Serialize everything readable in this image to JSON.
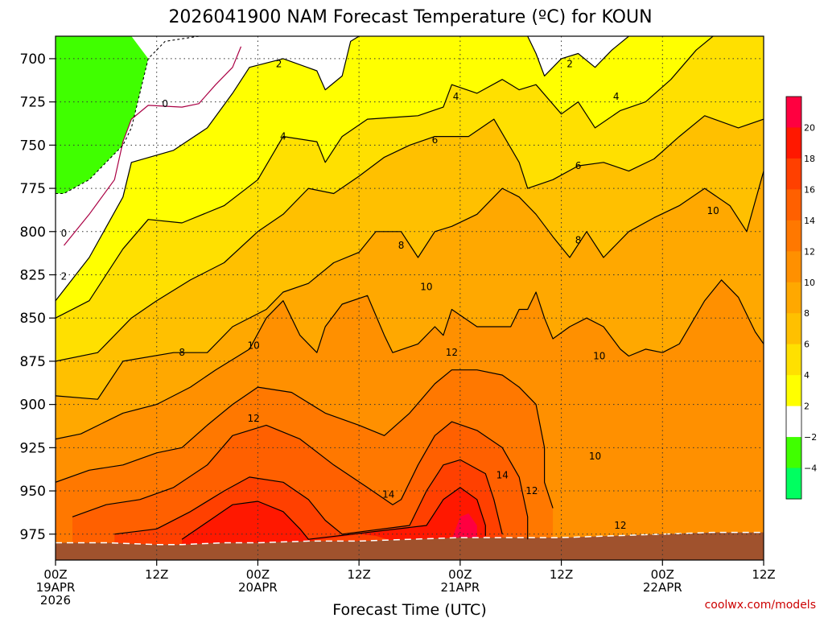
{
  "chart_data": {
    "type": "heatmap",
    "title": "2026041900 NAM Forecast Temperature (ºC) for KOUN",
    "xlabel": "Forecast Time (UTC)",
    "ylabel": "",
    "credit": "coolwx.com/models",
    "x_range_hours": [
      0,
      84
    ],
    "y_range_hpa": [
      687,
      990
    ],
    "y_ticks": [
      "700",
      "725",
      "750",
      "775",
      "800",
      "825",
      "850",
      "875",
      "900",
      "925",
      "950",
      "975"
    ],
    "x_ticks": [
      {
        "hour": 0,
        "line1": "00Z",
        "line2": "19APR",
        "line3": "2026"
      },
      {
        "hour": 12,
        "line1": "12Z",
        "line2": "",
        "line3": ""
      },
      {
        "hour": 24,
        "line1": "00Z",
        "line2": "20APR",
        "line3": ""
      },
      {
        "hour": 36,
        "line1": "12Z",
        "line2": "",
        "line3": ""
      },
      {
        "hour": 48,
        "line1": "00Z",
        "line2": "21APR",
        "line3": ""
      },
      {
        "hour": 60,
        "line1": "12Z",
        "line2": "",
        "line3": ""
      },
      {
        "hour": 72,
        "line1": "00Z",
        "line2": "22APR",
        "line3": ""
      },
      {
        "hour": 84,
        "line1": "12Z",
        "line2": "",
        "line3": ""
      }
    ],
    "colorbar": {
      "levels": [
        "20",
        "18",
        "16",
        "14",
        "12",
        "10",
        "8",
        "6",
        "4",
        "2",
        "−2",
        "−4"
      ],
      "colors": [
        "#ff0040",
        "#ff1800",
        "#ff4000",
        "#ff6000",
        "#ff7800",
        "#ff9000",
        "#ffa800",
        "#ffc000",
        "#ffe000",
        "#ffff00",
        "#ffffff",
        "#40ff00",
        "#00ff60"
      ]
    },
    "fill_colors": {
      "m4": "#40ff00",
      "m2_0": "#ffffff",
      "t0_2": "#ffffff",
      "t2_4": "#ffff00",
      "t4_6": "#ffe000",
      "t6_8": "#ffc000",
      "t8_10": "#ffa800",
      "t10_12": "#ff9000",
      "t12_14": "#ff7800",
      "t14_16": "#ff6000",
      "t16_18": "#ff4000",
      "t18_20": "#ff1800",
      "t20": "#ff0040",
      "ground": "#a0522d"
    },
    "surface_pressure_hpa": [
      [
        0,
        980
      ],
      [
        6,
        980
      ],
      [
        12,
        981
      ],
      [
        15,
        981
      ],
      [
        20,
        980
      ],
      [
        24,
        980
      ],
      [
        30,
        979
      ],
      [
        36,
        979
      ],
      [
        42,
        978
      ],
      [
        48,
        977
      ],
      [
        54,
        977
      ],
      [
        60,
        977
      ],
      [
        66,
        976
      ],
      [
        72,
        975
      ],
      [
        78,
        974
      ],
      [
        84,
        974
      ]
    ],
    "contours": [
      {
        "level": 0,
        "label": "0",
        "color": "#aa0044",
        "points": [
          [
            1,
            808
          ],
          [
            4,
            790
          ],
          [
            7,
            770
          ],
          [
            8,
            748
          ],
          [
            9,
            735
          ],
          [
            11,
            727
          ],
          [
            15,
            728
          ],
          [
            17,
            726
          ],
          [
            19,
            715
          ],
          [
            21,
            705
          ],
          [
            22,
            693
          ]
        ]
      },
      {
        "level": 2,
        "label": "2",
        "color": "#000000",
        "points": [
          [
            0,
            840
          ],
          [
            4,
            815
          ],
          [
            8,
            780
          ],
          [
            9,
            760
          ],
          [
            14,
            753
          ],
          [
            18,
            740
          ],
          [
            21,
            720
          ],
          [
            23,
            705
          ],
          [
            27,
            700
          ],
          [
            31,
            707
          ],
          [
            32,
            718
          ],
          [
            34,
            710
          ],
          [
            35,
            690
          ],
          [
            36,
            687
          ]
        ]
      },
      {
        "level": 2,
        "label": "2",
        "color": "#000000",
        "points": [
          [
            56,
            687
          ],
          [
            57,
            697
          ],
          [
            58,
            710
          ],
          [
            60,
            700
          ],
          [
            62,
            697
          ],
          [
            64,
            705
          ],
          [
            66,
            695
          ],
          [
            68,
            687
          ]
        ]
      },
      {
        "level": 4,
        "label": "4",
        "color": "#000000",
        "points": [
          [
            0,
            850
          ],
          [
            4,
            840
          ],
          [
            8,
            810
          ],
          [
            11,
            793
          ],
          [
            15,
            795
          ],
          [
            20,
            785
          ],
          [
            24,
            770
          ],
          [
            27,
            745
          ],
          [
            31,
            748
          ],
          [
            32,
            760
          ],
          [
            34,
            745
          ],
          [
            37,
            735
          ],
          [
            43,
            733
          ],
          [
            46,
            728
          ],
          [
            47,
            715
          ],
          [
            50,
            720
          ],
          [
            53,
            712
          ],
          [
            55,
            718
          ],
          [
            57,
            715
          ],
          [
            60,
            732
          ],
          [
            62,
            725
          ],
          [
            64,
            740
          ],
          [
            67,
            730
          ],
          [
            70,
            725
          ],
          [
            73,
            712
          ],
          [
            76,
            695
          ],
          [
            78,
            687
          ]
        ]
      },
      {
        "level": 6,
        "label": "6",
        "color": "#000000",
        "points": [
          [
            0,
            875
          ],
          [
            5,
            870
          ],
          [
            9,
            850
          ],
          [
            12,
            840
          ],
          [
            16,
            828
          ],
          [
            20,
            818
          ],
          [
            24,
            800
          ],
          [
            27,
            790
          ],
          [
            30,
            775
          ],
          [
            33,
            778
          ],
          [
            36,
            768
          ],
          [
            39,
            757
          ],
          [
            42,
            750
          ],
          [
            45,
            745
          ],
          [
            49,
            745
          ],
          [
            52,
            735
          ],
          [
            55,
            760
          ],
          [
            56,
            775
          ],
          [
            59,
            770
          ],
          [
            62,
            762
          ],
          [
            65,
            760
          ],
          [
            68,
            765
          ],
          [
            71,
            758
          ],
          [
            74,
            745
          ],
          [
            77,
            733
          ],
          [
            81,
            740
          ],
          [
            84,
            735
          ]
        ]
      },
      {
        "level": 8,
        "label": "8",
        "color": "#000000",
        "points": [
          [
            0,
            895
          ],
          [
            5,
            897
          ],
          [
            8,
            875
          ],
          [
            14,
            870
          ],
          [
            18,
            870
          ],
          [
            21,
            855
          ],
          [
            25,
            845
          ],
          [
            27,
            835
          ],
          [
            30,
            830
          ],
          [
            33,
            818
          ],
          [
            36,
            812
          ],
          [
            38,
            800
          ],
          [
            41,
            800
          ],
          [
            43,
            815
          ],
          [
            45,
            800
          ],
          [
            47,
            797
          ],
          [
            50,
            790
          ],
          [
            53,
            775
          ],
          [
            55,
            780
          ],
          [
            57,
            790
          ],
          [
            59,
            803
          ],
          [
            61,
            815
          ],
          [
            63,
            800
          ],
          [
            65,
            815
          ],
          [
            68,
            800
          ],
          [
            71,
            792
          ],
          [
            74,
            785
          ],
          [
            77,
            775
          ],
          [
            80,
            785
          ],
          [
            82,
            800
          ],
          [
            84,
            765
          ]
        ]
      },
      {
        "level": 10,
        "label": "10",
        "color": "#000000",
        "points": [
          [
            0,
            920
          ],
          [
            3,
            917
          ],
          [
            8,
            905
          ],
          [
            12,
            900
          ],
          [
            16,
            890
          ],
          [
            19,
            880
          ],
          [
            23,
            868
          ],
          [
            25,
            850
          ],
          [
            27,
            840
          ],
          [
            29,
            860
          ],
          [
            31,
            870
          ],
          [
            32,
            855
          ],
          [
            34,
            842
          ],
          [
            37,
            837
          ],
          [
            39,
            860
          ],
          [
            40,
            870
          ],
          [
            43,
            865
          ],
          [
            45,
            855
          ],
          [
            46,
            860
          ],
          [
            47,
            845
          ],
          [
            50,
            855
          ],
          [
            53,
            855
          ],
          [
            54,
            855
          ],
          [
            55,
            845
          ],
          [
            56,
            845
          ],
          [
            57,
            835
          ],
          [
            58,
            850
          ],
          [
            59,
            862
          ],
          [
            61,
            855
          ],
          [
            63,
            850
          ],
          [
            65,
            855
          ],
          [
            67,
            868
          ],
          [
            68,
            872
          ],
          [
            70,
            868
          ],
          [
            72,
            870
          ],
          [
            74,
            865
          ],
          [
            77,
            840
          ],
          [
            79,
            828
          ],
          [
            81,
            838
          ],
          [
            83,
            858
          ],
          [
            84,
            865
          ]
        ]
      },
      {
        "level": 12,
        "label": "12",
        "color": "#000000",
        "points": [
          [
            0,
            945
          ],
          [
            4,
            938
          ],
          [
            8,
            935
          ],
          [
            12,
            928
          ],
          [
            15,
            925
          ],
          [
            18,
            912
          ],
          [
            21,
            900
          ],
          [
            24,
            890
          ],
          [
            28,
            893
          ],
          [
            32,
            905
          ],
          [
            36,
            912
          ],
          [
            39,
            918
          ],
          [
            42,
            905
          ],
          [
            45,
            888
          ],
          [
            47,
            880
          ],
          [
            50,
            880
          ],
          [
            53,
            883
          ],
          [
            55,
            890
          ],
          [
            57,
            900
          ],
          [
            58,
            925
          ],
          [
            58,
            945
          ],
          [
            59,
            960
          ]
        ]
      },
      {
        "level": 14,
        "label": "14",
        "color": "#000000",
        "points": [
          [
            2,
            965
          ],
          [
            6,
            958
          ],
          [
            10,
            955
          ],
          [
            14,
            948
          ],
          [
            18,
            935
          ],
          [
            21,
            918
          ],
          [
            25,
            912
          ],
          [
            29,
            920
          ],
          [
            33,
            935
          ],
          [
            37,
            948
          ],
          [
            40,
            958
          ],
          [
            41,
            955
          ],
          [
            43,
            935
          ],
          [
            45,
            918
          ],
          [
            47,
            910
          ],
          [
            50,
            915
          ],
          [
            53,
            925
          ],
          [
            55,
            942
          ],
          [
            56,
            965
          ],
          [
            56,
            978
          ]
        ]
      },
      {
        "level": 16,
        "label": "",
        "color": "#000000",
        "points": [
          [
            7,
            975
          ],
          [
            12,
            972
          ],
          [
            16,
            962
          ],
          [
            20,
            950
          ],
          [
            23,
            942
          ],
          [
            27,
            945
          ],
          [
            30,
            955
          ],
          [
            32,
            967
          ],
          [
            34,
            975
          ],
          [
            42,
            970
          ],
          [
            44,
            950
          ],
          [
            46,
            935
          ],
          [
            48,
            932
          ],
          [
            51,
            940
          ],
          [
            52,
            955
          ],
          [
            53,
            975
          ]
        ]
      },
      {
        "level": 18,
        "label": "",
        "color": "#000000",
        "points": [
          [
            15,
            978
          ],
          [
            18,
            968
          ],
          [
            21,
            958
          ],
          [
            24,
            956
          ],
          [
            27,
            962
          ],
          [
            29,
            972
          ],
          [
            30,
            978
          ],
          [
            44,
            970
          ],
          [
            46,
            955
          ],
          [
            48,
            948
          ],
          [
            50,
            955
          ],
          [
            51,
            970
          ],
          [
            51,
            976
          ]
        ]
      }
    ],
    "contour_labels": [
      {
        "text": "0",
        "hour": 13,
        "hpa": 726
      },
      {
        "text": "0",
        "hour": 1,
        "hpa": 801
      },
      {
        "text": "2",
        "hour": 26.5,
        "hpa": 703
      },
      {
        "text": "2",
        "hour": 61,
        "hpa": 703
      },
      {
        "text": "2",
        "hour": 1,
        "hpa": 826
      },
      {
        "text": "4",
        "hour": 27,
        "hpa": 745
      },
      {
        "text": "4",
        "hour": 47.5,
        "hpa": 722
      },
      {
        "text": "4",
        "hour": 66.5,
        "hpa": 722
      },
      {
        "text": "6",
        "hour": 45,
        "hpa": 747
      },
      {
        "text": "6",
        "hour": 62,
        "hpa": 762
      },
      {
        "text": "8",
        "hour": 15,
        "hpa": 870
      },
      {
        "text": "8",
        "hour": 41,
        "hpa": 808
      },
      {
        "text": "8",
        "hour": 62,
        "hpa": 805
      },
      {
        "text": "10",
        "hour": 23.5,
        "hpa": 866
      },
      {
        "text": "10",
        "hour": 44,
        "hpa": 832
      },
      {
        "text": "10",
        "hour": 64.5,
        "hpa": 872
      },
      {
        "text": "10",
        "hour": 78,
        "hpa": 788
      },
      {
        "text": "10",
        "hour": 64,
        "hpa": 930
      },
      {
        "text": "12",
        "hour": 23.5,
        "hpa": 908
      },
      {
        "text": "12",
        "hour": 47,
        "hpa": 870
      },
      {
        "text": "12",
        "hour": 56.5,
        "hpa": 950
      },
      {
        "text": "12",
        "hour": 67,
        "hpa": 970
      },
      {
        "text": "14",
        "hour": 39.5,
        "hpa": 952
      },
      {
        "text": "14",
        "hour": 53,
        "hpa": 941
      }
    ]
  }
}
